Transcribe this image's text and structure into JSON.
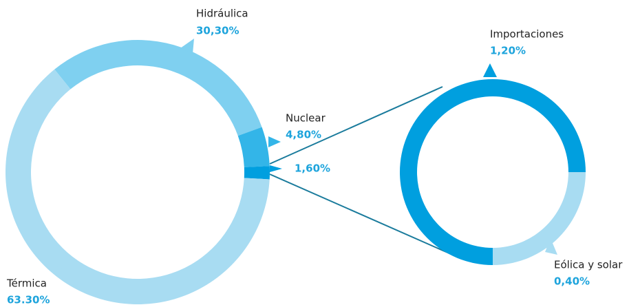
{
  "chart_data": [
    {
      "type": "pie",
      "categories": [
        "Hidráulica",
        "Nuclear",
        null,
        "Térmica"
      ],
      "values": [
        30.3,
        4.8,
        1.6,
        63.3
      ],
      "value_labels": [
        "30,30%",
        "4,80%",
        "1,60%",
        "63.30%"
      ],
      "colors": [
        "#7fd0f0",
        "#33b5e8",
        "#009fdf",
        "#a8dcf2"
      ]
    },
    {
      "type": "pie",
      "categories": [
        "Eólica y solar",
        "Importaciones"
      ],
      "values": [
        0.4,
        1.2
      ],
      "value_labels": [
        "0,40%",
        "1,20%"
      ],
      "colors": [
        "#a8dcf2",
        "#009fdf"
      ]
    }
  ]
}
